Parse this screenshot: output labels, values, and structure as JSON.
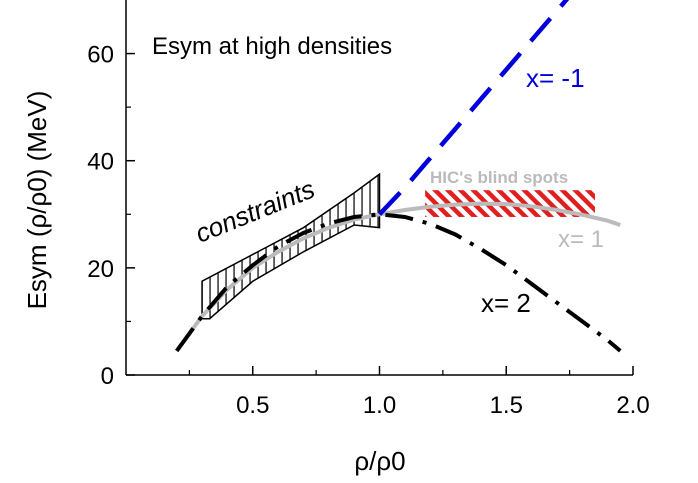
{
  "chart_data": {
    "type": "line",
    "title": "Esym at high densities",
    "xlabel": "ρ/ρ0",
    "ylabel": "Esym (ρ/ρ0) (MeV)",
    "xlim": [
      0.0,
      2.0
    ],
    "ylim": [
      0,
      70
    ],
    "xticks": [
      0.5,
      1.0,
      1.5,
      2.0
    ],
    "xtick_labels": [
      "0.5",
      "1.0",
      "1.5",
      "2.0"
    ],
    "yticks": [
      0,
      20,
      40,
      60
    ],
    "ytick_labels": [
      "0",
      "20",
      "40",
      "60"
    ],
    "grid": false,
    "series": [
      {
        "name": "x= 1",
        "color": "#bbbbbb",
        "style": "solid",
        "x": [
          0.2,
          0.3,
          0.4,
          0.5,
          0.6,
          0.7,
          0.8,
          0.9,
          1.0,
          1.1,
          1.2,
          1.3,
          1.4,
          1.5,
          1.6,
          1.7,
          1.8,
          1.9,
          1.95
        ],
        "y": [
          4.5,
          11.0,
          16.0,
          20.0,
          23.0,
          25.5,
          27.5,
          29.0,
          30.0,
          30.8,
          31.4,
          31.8,
          32.0,
          31.9,
          31.5,
          30.8,
          29.9,
          28.8,
          28.0
        ]
      },
      {
        "name": "x= 2",
        "color": "#000000",
        "style": "dashdot",
        "x": [
          0.2,
          0.3,
          0.4,
          0.5,
          0.6,
          0.7,
          0.8,
          0.9,
          1.0,
          1.1,
          1.2,
          1.3,
          1.4,
          1.5,
          1.6,
          1.7,
          1.8,
          1.9,
          1.95
        ],
        "y": [
          4.5,
          11.0,
          16.5,
          20.5,
          24.0,
          26.5,
          28.3,
          29.5,
          30.0,
          29.5,
          28.2,
          26.2,
          23.5,
          20.5,
          17.0,
          13.5,
          10.0,
          6.5,
          4.5
        ]
      },
      {
        "name": "x= -1",
        "color": "#0000dd",
        "style": "dashed",
        "x": [
          1.0,
          1.1,
          1.2,
          1.3,
          1.4,
          1.5,
          1.6,
          1.7,
          1.8
        ],
        "y": [
          30.0,
          35.0,
          40.5,
          46.0,
          51.5,
          57.0,
          62.5,
          68.0,
          73.5
        ]
      }
    ],
    "regions": [
      {
        "name": "constraints",
        "polygon_x": [
          0.3,
          0.3,
          0.5,
          0.7,
          0.9,
          1.0,
          1.0,
          0.9,
          0.7,
          0.5,
          0.33
        ],
        "polygon_y": [
          10.5,
          17.5,
          22.5,
          27.5,
          34.0,
          37.5,
          27.5,
          28.0,
          23.0,
          17.5,
          10.5
        ]
      },
      {
        "name": "HIC's blind spots",
        "color": "#e02020",
        "x_range": [
          1.18,
          1.85
        ],
        "y_range": [
          29.5,
          34.5
        ]
      }
    ],
    "annotations": [
      "Esym at high densities",
      "constraints",
      "HIC's blind spots",
      "x= -1",
      "x= 1",
      "x= 2"
    ]
  }
}
